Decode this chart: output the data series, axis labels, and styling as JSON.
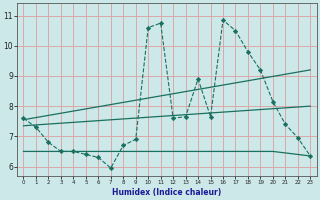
{
  "xlabel": "Humidex (Indice chaleur)",
  "bg_color": "#cce8e8",
  "grid_color": "#dba8a8",
  "line_color": "#1a7060",
  "xlim": [
    -0.5,
    23.5
  ],
  "ylim": [
    5.7,
    11.4
  ],
  "yticks": [
    6,
    7,
    8,
    9,
    10,
    11
  ],
  "xticks": [
    0,
    1,
    2,
    3,
    4,
    5,
    6,
    7,
    8,
    9,
    10,
    11,
    12,
    13,
    14,
    15,
    16,
    17,
    18,
    19,
    20,
    21,
    22,
    23
  ],
  "line1_x": [
    0,
    1,
    2,
    3,
    4,
    5,
    6,
    7,
    8,
    9,
    10,
    11,
    12,
    13,
    14,
    15,
    16,
    17,
    18,
    19,
    20,
    21,
    22,
    23
  ],
  "line1_y": [
    7.6,
    7.3,
    6.8,
    6.5,
    6.5,
    6.4,
    6.3,
    5.95,
    6.7,
    6.9,
    10.6,
    10.75,
    7.6,
    7.65,
    8.9,
    7.65,
    10.85,
    10.5,
    9.8,
    9.2,
    8.15,
    7.4,
    6.95,
    6.35
  ],
  "line2_x": [
    0,
    23
  ],
  "line2_y": [
    7.55,
    9.2
  ],
  "line3_x": [
    0,
    23
  ],
  "line3_y": [
    7.35,
    8.0
  ],
  "line4_x": [
    0,
    20,
    23
  ],
  "line4_y": [
    6.5,
    6.5,
    6.35
  ]
}
